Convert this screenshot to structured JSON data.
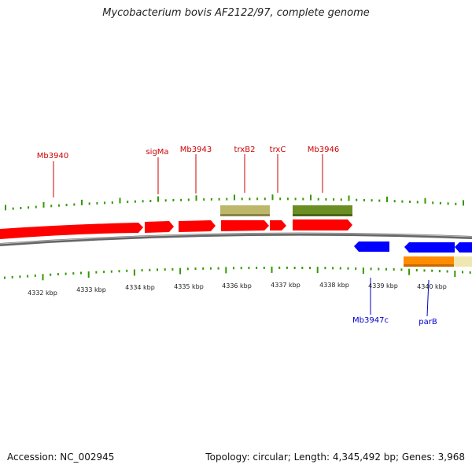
{
  "title": "Mycobacterium bovis AF2122/97, complete genome",
  "footer": {
    "accession": "Accession: NC_002945",
    "stats": "Topology: circular; Length: 4,345,492 bp; Genes: 3,968"
  },
  "colors": {
    "forward_gene": "#ff0000",
    "reverse_gene": "#0000ff",
    "forward_label": "#cc0000",
    "reverse_label": "#0000cc",
    "tick": "#339900",
    "backbone": "#777777",
    "feature_khaki": "#bdb76b",
    "feature_olive": "#6b8e23",
    "feature_orange": "#ff8c00",
    "feature_beige": "#f0e6b0"
  },
  "ticks": [
    "4332 kbp",
    "4333 kbp",
    "4334 kbp",
    "4335 kbp",
    "4336 kbp",
    "4337 kbp",
    "4338 kbp",
    "4339 kbp",
    "4340 kbp"
  ],
  "labels": {
    "mb3940": "Mb3940",
    "sigma": "sigMa",
    "mb3943": "Mb3943",
    "trxb2": "trxB2",
    "trxc": "trxC",
    "mb3946": "Mb3946",
    "mb3947c": "Mb3947c",
    "parb": "parB"
  }
}
